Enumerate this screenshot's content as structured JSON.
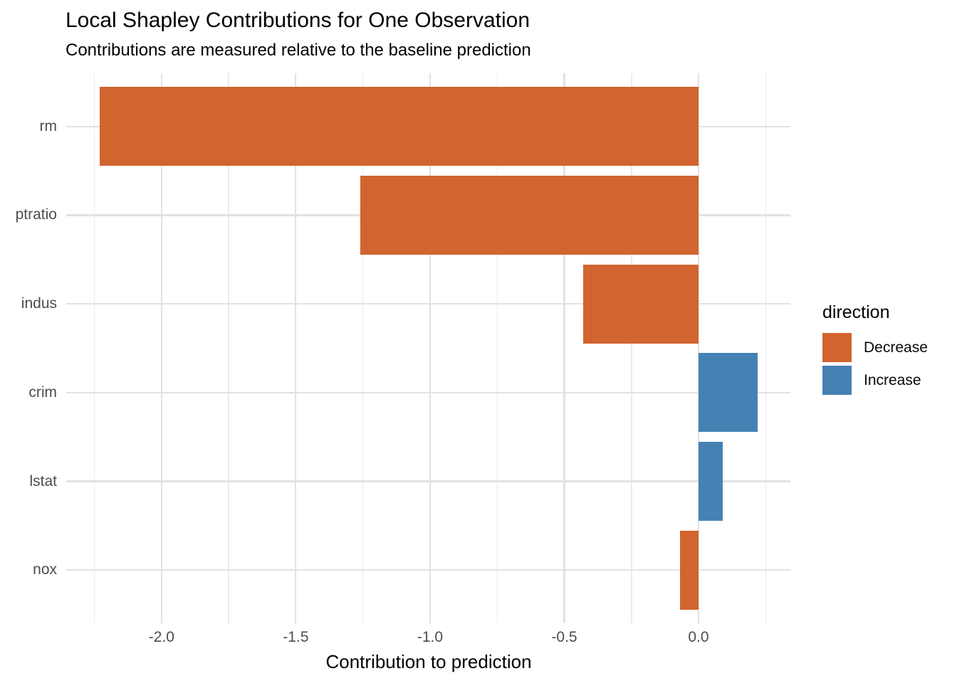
{
  "title": "Local Shapley Contributions for One Observation",
  "subtitle": "Contributions are measured relative to the baseline prediction",
  "chart_data": {
    "type": "bar",
    "orientation": "horizontal",
    "title": "Local Shapley Contributions for One Observation",
    "subtitle": "Contributions are measured relative to the baseline prediction",
    "xlabel": "Contribution to prediction",
    "ylabel": "",
    "categories": [
      "rm",
      "ptratio",
      "indus",
      "crim",
      "lstat",
      "nox"
    ],
    "values": [
      -2.23,
      -1.26,
      -0.43,
      0.22,
      0.09,
      -0.07
    ],
    "directions": [
      "Decrease",
      "Decrease",
      "Decrease",
      "Increase",
      "Increase",
      "Decrease"
    ],
    "x_ticks": [
      -2.0,
      -1.5,
      -1.0,
      -0.5,
      0.0
    ],
    "x_tick_labels": [
      "-2.0",
      "-1.5",
      "-1.0",
      "-0.5",
      "0.0"
    ],
    "x_minor_ticks": [
      -2.25,
      -1.75,
      -1.25,
      -0.75,
      -0.25,
      0.25
    ],
    "xlim": [
      -2.355,
      0.342
    ],
    "grid": true,
    "legend": {
      "title": "direction",
      "position": "right",
      "entries": [
        {
          "label": "Decrease",
          "color": "#D26430"
        },
        {
          "label": "Increase",
          "color": "#4681B4"
        }
      ]
    },
    "colors": {
      "Decrease": "#D26430",
      "Increase": "#4681B4"
    }
  }
}
